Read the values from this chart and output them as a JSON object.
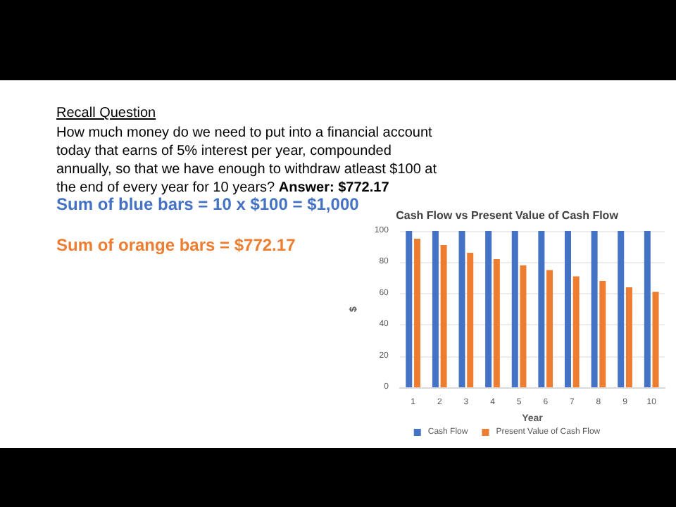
{
  "chart_data": {
    "type": "bar",
    "title": "Cash Flow vs Present Value of Cash Flow",
    "xlabel": "Year",
    "ylabel": "$",
    "categories": [
      "1",
      "2",
      "3",
      "4",
      "5",
      "6",
      "7",
      "8",
      "9",
      "10"
    ],
    "series": [
      {
        "name": "Cash Flow",
        "color": "#4472c4",
        "values": [
          100,
          100,
          100,
          100,
          100,
          100,
          100,
          100,
          100,
          100
        ]
      },
      {
        "name": "Present Value of Cash Flow",
        "color": "#ed7d31",
        "values": [
          95,
          91,
          86,
          82,
          78,
          75,
          71,
          68,
          64,
          61
        ]
      }
    ],
    "ylim": [
      0,
      100
    ],
    "yticks": [
      0,
      20,
      40,
      60,
      80,
      100
    ],
    "grid": "y",
    "legend": "bottom",
    "annotations": [
      "Recall Question",
      "How much money do we need to put into a financial account today that earns of 5% interest per year, compounded annually, so that we have enough to withdraw atleast $100 at the end of every year for 10 years?",
      "Answer: $772.17",
      "Sum of blue bars = 10 x $100 = $1,000",
      "Sum of orange bars = $772.17"
    ]
  }
}
